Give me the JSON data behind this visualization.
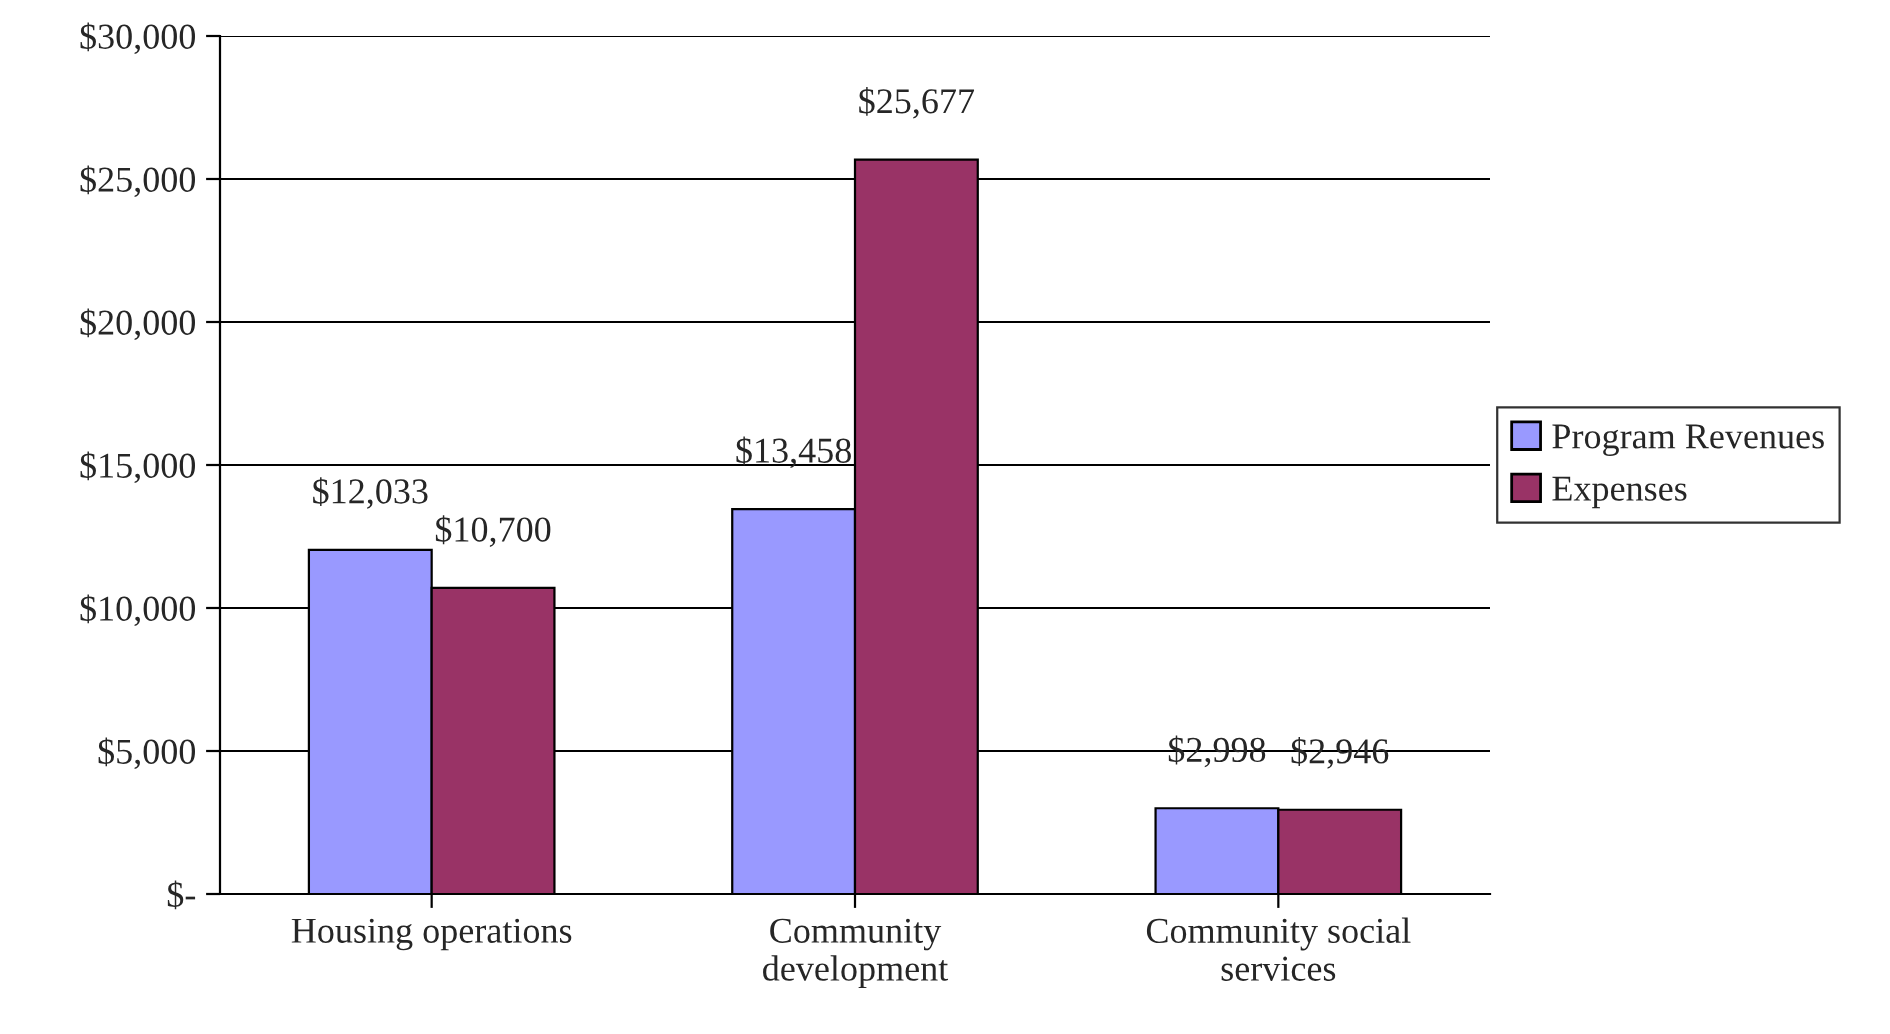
{
  "chart_data": {
    "type": "bar",
    "categories": [
      "Housing operations",
      "Community\ndevelopment",
      "Community social\nservices"
    ],
    "series": [
      {
        "name": "Program Revenues",
        "color": "#9999ff",
        "values": [
          12033,
          13458,
          2998
        ],
        "value_labels": [
          "$12,033",
          "$13,458",
          "$2,998"
        ]
      },
      {
        "name": "Expenses",
        "color": "#993366",
        "values": [
          10700,
          25677,
          2946
        ],
        "value_labels": [
          "$10,700",
          "$25,677",
          "$2,946"
        ]
      }
    ],
    "ylim": [
      0,
      30000
    ],
    "yticks": [
      {
        "value": 0,
        "label": "$-"
      },
      {
        "value": 5000,
        "label": "$5,000"
      },
      {
        "value": 10000,
        "label": "$10,000"
      },
      {
        "value": 15000,
        "label": "$15,000"
      },
      {
        "value": 20000,
        "label": "$20,000"
      },
      {
        "value": 25000,
        "label": "$25,000"
      },
      {
        "value": 30000,
        "label": "$30,000"
      }
    ],
    "grid": "y",
    "legend": "right"
  }
}
